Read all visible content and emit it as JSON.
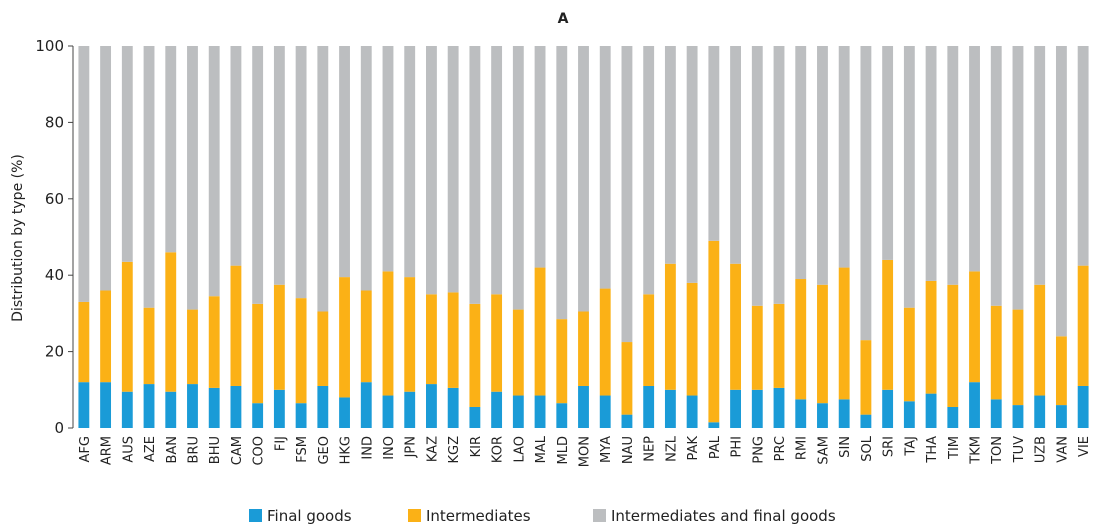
{
  "chart_data": {
    "type": "bar",
    "stacked": true,
    "title": "A",
    "ylabel": "Distribution by type (%)",
    "xlabel": "",
    "ylim": [
      0,
      100
    ],
    "yticks": [
      0,
      20,
      40,
      60,
      80,
      100
    ],
    "grid": false,
    "legend_position": "bottom",
    "categories": [
      "AFG",
      "ARM",
      "AUS",
      "AZE",
      "BAN",
      "BRU",
      "BHU",
      "CAM",
      "COO",
      "FIJ",
      "FSM",
      "GEO",
      "HKG",
      "IND",
      "INO",
      "JPN",
      "KAZ",
      "KGZ",
      "KIR",
      "KOR",
      "LAO",
      "MAL",
      "MLD",
      "MON",
      "MYA",
      "NAU",
      "NEP",
      "NZL",
      "PAK",
      "PAL",
      "PHI",
      "PNG",
      "PRC",
      "RMI",
      "SAM",
      "SIN",
      "SOL",
      "SRI",
      "TAJ",
      "THA",
      "TIM",
      "TKM",
      "TON",
      "TUV",
      "UZB",
      "VAN",
      "VIE"
    ],
    "series": [
      {
        "name": "Final goods",
        "color": "#1a9bd7",
        "values": [
          12,
          12,
          9.5,
          11.5,
          9.5,
          11.5,
          10.5,
          11,
          6.5,
          10,
          6.5,
          11,
          8,
          12,
          8.5,
          9.5,
          11.5,
          10.5,
          5.5,
          9.5,
          8.5,
          8.5,
          6.5,
          11,
          8.5,
          3.5,
          11,
          10,
          8.5,
          1.5,
          10,
          10,
          10.5,
          7.5,
          6.5,
          7.5,
          3.5,
          10,
          7,
          9,
          5.5,
          12,
          7.5,
          6,
          8.5,
          6,
          11
        ]
      },
      {
        "name": "Intermediates",
        "color": "#fbb116",
        "values": [
          21,
          24,
          34,
          20,
          36.5,
          19.5,
          24,
          31.5,
          26,
          27.5,
          27.5,
          19.5,
          31.5,
          24,
          32.5,
          30,
          23.5,
          25,
          27,
          25.5,
          22.5,
          33.5,
          22,
          19.5,
          28,
          19,
          24,
          33,
          29.5,
          47.5,
          33,
          22,
          22,
          31.5,
          31,
          34.5,
          19.5,
          34,
          24.5,
          29.5,
          32,
          29,
          24.5,
          25,
          29,
          18,
          31.5
        ]
      },
      {
        "name": "Intermediates and final goods",
        "color": "#bcbec0",
        "values": [
          67,
          64,
          56.5,
          68.5,
          54,
          69,
          65.5,
          57.5,
          67.5,
          62.5,
          66,
          69.5,
          60.5,
          64,
          59,
          60.5,
          65,
          64.5,
          67.5,
          65,
          69,
          58,
          71.5,
          69.5,
          63.5,
          77.5,
          65,
          57,
          62,
          51,
          57,
          68,
          67.5,
          61,
          62.5,
          58,
          77,
          56,
          68.5,
          61.5,
          62.5,
          59,
          68,
          69,
          62.5,
          76,
          57.5
        ]
      }
    ]
  }
}
